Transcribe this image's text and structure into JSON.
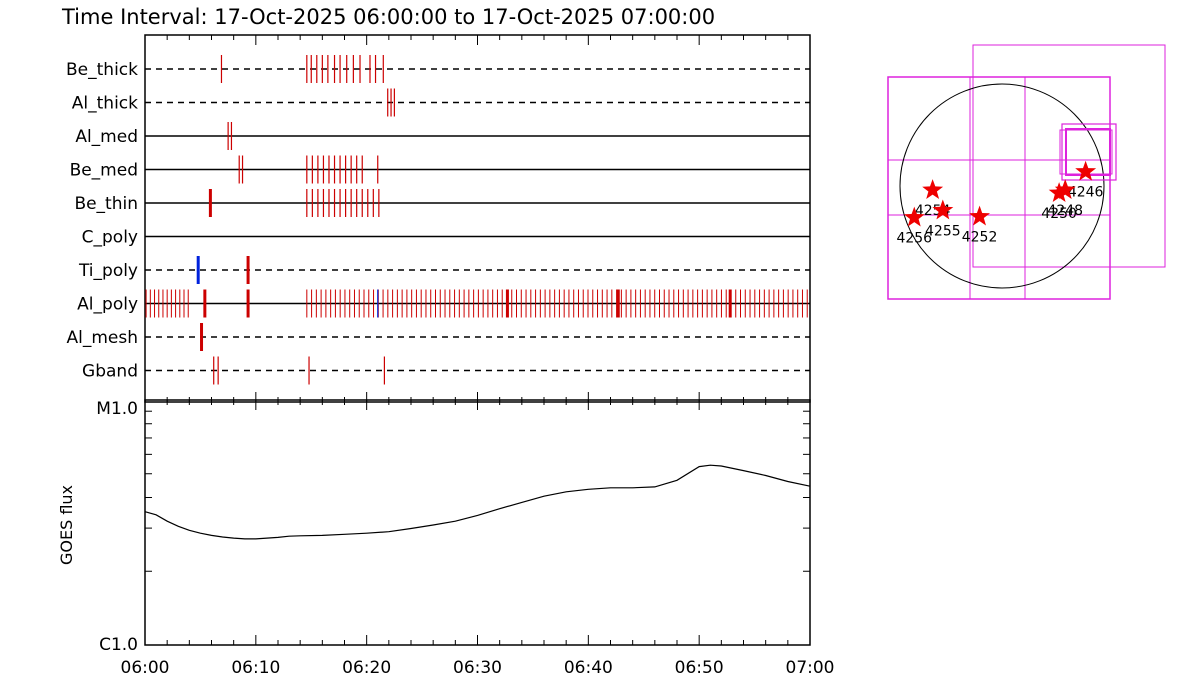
{
  "title": "Time Interval: 17-Oct-2025 06:00:00 to 17-Oct-2025 07:00:00",
  "colors": {
    "exposure_mark": "#cc0000",
    "highlight_mark": "#0022dd",
    "goes_line": "#000000",
    "fov_box": "#dd22dd",
    "ar_star": "#ee0000"
  },
  "chart_data": [
    {
      "type": "timeline",
      "x_start": "06:00",
      "x_end": "07:00",
      "rows": [
        {
          "name": "Be_thick",
          "dashed": true,
          "marks": [
            {
              "t": 6.9
            },
            {
              "t": 14.6
            },
            {
              "t": 15.0
            },
            {
              "t": 15.5
            },
            {
              "t": 16.0
            },
            {
              "t": 16.5
            },
            {
              "t": 17.1
            },
            {
              "t": 17.6
            },
            {
              "t": 18.2
            },
            {
              "t": 18.8
            },
            {
              "t": 19.4
            },
            {
              "t": 20.3
            },
            {
              "t": 20.8
            },
            {
              "t": 21.5
            }
          ]
        },
        {
          "name": "Al_thick",
          "dashed": true,
          "marks": [
            {
              "t": 21.9
            },
            {
              "t": 22.2
            },
            {
              "t": 22.5
            }
          ]
        },
        {
          "name": "Al_med",
          "dashed": false,
          "marks": [
            {
              "t": 7.5
            },
            {
              "t": 7.8
            }
          ]
        },
        {
          "name": "Be_med",
          "dashed": false,
          "marks": [
            {
              "t": 8.5
            },
            {
              "t": 8.8
            },
            {
              "t": 14.6
            },
            {
              "t": 15.1
            },
            {
              "t": 15.6
            },
            {
              "t": 16.1
            },
            {
              "t": 16.6
            },
            {
              "t": 17.1
            },
            {
              "t": 17.6
            },
            {
              "t": 18.1
            },
            {
              "t": 18.6
            },
            {
              "t": 19.1
            },
            {
              "t": 19.6
            },
            {
              "t": 21.0
            }
          ]
        },
        {
          "name": "Be_thin",
          "dashed": false,
          "marks": [
            {
              "t": 5.9,
              "thick": true
            },
            {
              "t": 14.6
            },
            {
              "t": 15.1
            },
            {
              "t": 15.6
            },
            {
              "t": 16.1
            },
            {
              "t": 16.6
            },
            {
              "t": 17.1
            },
            {
              "t": 17.6
            },
            {
              "t": 18.1
            },
            {
              "t": 18.6
            },
            {
              "t": 19.1
            },
            {
              "t": 19.6
            },
            {
              "t": 20.1
            },
            {
              "t": 20.6
            },
            {
              "t": 21.1
            }
          ]
        },
        {
          "name": "C_poly",
          "dashed": false,
          "marks": []
        },
        {
          "name": "Ti_poly",
          "dashed": true,
          "marks": [
            {
              "t": 4.8,
              "thick": true,
              "blue": true
            },
            {
              "t": 9.3,
              "thick": true
            }
          ]
        },
        {
          "name": "Al_poly",
          "dashed": false,
          "dense": true,
          "marks": [
            {
              "t": 5.4,
              "thick": true
            },
            {
              "t": 9.3,
              "thick": true
            },
            {
              "t": 21.0,
              "blue": true
            },
            {
              "t": 32.7,
              "thick": true
            },
            {
              "t": 42.7,
              "thick": true
            },
            {
              "t": 52.8,
              "thick": true
            }
          ]
        },
        {
          "name": "Al_mesh",
          "dashed": true,
          "marks": [
            {
              "t": 5.1,
              "thick": true
            }
          ]
        },
        {
          "name": "Gband",
          "dashed": true,
          "marks": [
            {
              "t": 6.2
            },
            {
              "t": 6.6
            },
            {
              "t": 14.8
            },
            {
              "t": 21.6
            }
          ]
        }
      ]
    },
    {
      "type": "line",
      "ylabel": "GOES flux",
      "ytick_top": "M1.0",
      "ytick_bottom": "C1.0",
      "yscale": "log",
      "ylim": [
        1e-06,
        1e-05
      ],
      "xticks": [
        "06:00",
        "06:10",
        "06:20",
        "06:30",
        "06:40",
        "06:50",
        "07:00"
      ],
      "series": [
        {
          "values": [
            [
              0,
              3.5e-06
            ],
            [
              1,
              3.4e-06
            ],
            [
              2,
              3.2e-06
            ],
            [
              3,
              3.05e-06
            ],
            [
              4,
              2.94e-06
            ],
            [
              5,
              2.86e-06
            ],
            [
              6,
              2.8e-06
            ],
            [
              7,
              2.76e-06
            ],
            [
              8,
              2.73e-06
            ],
            [
              9,
              2.71e-06
            ],
            [
              10,
              2.71e-06
            ],
            [
              11,
              2.73e-06
            ],
            [
              12,
              2.75e-06
            ],
            [
              13,
              2.78e-06
            ],
            [
              14,
              2.79e-06
            ],
            [
              16,
              2.8e-06
            ],
            [
              18,
              2.83e-06
            ],
            [
              20,
              2.86e-06
            ],
            [
              22,
              2.9e-06
            ],
            [
              24,
              2.99e-06
            ],
            [
              26,
              3.09e-06
            ],
            [
              28,
              3.2e-06
            ],
            [
              30,
              3.38e-06
            ],
            [
              32,
              3.6e-06
            ],
            [
              34,
              3.82e-06
            ],
            [
              36,
              4.05e-06
            ],
            [
              38,
              4.22e-06
            ],
            [
              40,
              4.32e-06
            ],
            [
              42,
              4.38e-06
            ],
            [
              44,
              4.38e-06
            ],
            [
              46,
              4.42e-06
            ],
            [
              48,
              4.7e-06
            ],
            [
              50,
              5.35e-06
            ],
            [
              51,
              5.42e-06
            ],
            [
              52,
              5.38e-06
            ],
            [
              54,
              5.15e-06
            ],
            [
              56,
              4.92e-06
            ],
            [
              58,
              4.65e-06
            ],
            [
              60,
              4.45e-06
            ]
          ]
        }
      ]
    },
    {
      "type": "scatter",
      "note_kind": "sun_map",
      "regions": [
        {
          "label": "4246",
          "x": 0.82,
          "y": 0.14
        },
        {
          "label": "4248",
          "x": 0.62,
          "y": -0.04
        },
        {
          "label": "4250",
          "x": 0.56,
          "y": -0.07
        },
        {
          "label": "4252",
          "x": -0.22,
          "y": -0.3
        },
        {
          "label": "4254",
          "x": -0.68,
          "y": -0.04
        },
        {
          "label": "4255",
          "x": -0.58,
          "y": -0.24
        },
        {
          "label": "4256",
          "x": -0.86,
          "y": -0.31
        }
      ]
    }
  ]
}
